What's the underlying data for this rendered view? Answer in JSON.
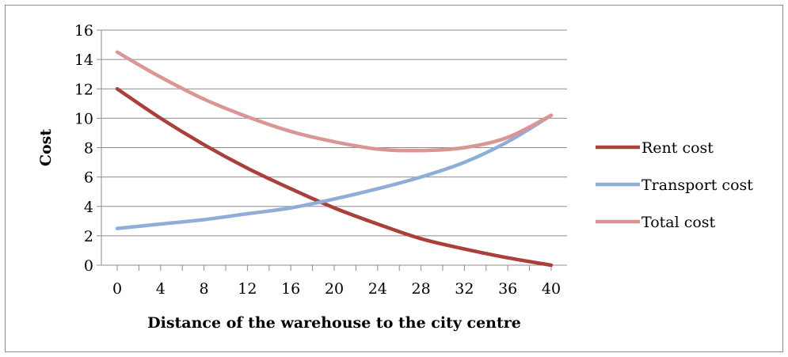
{
  "chart_data": {
    "type": "line",
    "title": "",
    "xlabel": "Distance of the warehouse to the city centre",
    "ylabel": "Cost",
    "xlim": [
      0,
      40
    ],
    "ylim": [
      0,
      16
    ],
    "x_ticks": [
      0,
      4,
      8,
      12,
      16,
      20,
      24,
      28,
      32,
      36,
      40
    ],
    "y_ticks": [
      0,
      2,
      4,
      6,
      8,
      10,
      12,
      14,
      16
    ],
    "grid": "horizontal",
    "legend_position": "right",
    "x": [
      0,
      4,
      8,
      12,
      16,
      20,
      24,
      28,
      32,
      36,
      40
    ],
    "series": [
      {
        "name": "Rent cost",
        "color": "#a9403b",
        "values": [
          12.0,
          10.0,
          8.2,
          6.6,
          5.2,
          3.9,
          2.8,
          1.8,
          1.1,
          0.5,
          0.0
        ]
      },
      {
        "name": "Transport cost",
        "color": "#8fadd9",
        "values": [
          2.5,
          2.8,
          3.1,
          3.5,
          3.9,
          4.5,
          5.2,
          6.0,
          7.0,
          8.4,
          10.2
        ]
      },
      {
        "name": "Total cost",
        "color": "#d99694",
        "values": [
          14.5,
          12.8,
          11.3,
          10.1,
          9.1,
          8.4,
          7.9,
          7.8,
          8.0,
          8.7,
          10.2
        ]
      }
    ]
  }
}
